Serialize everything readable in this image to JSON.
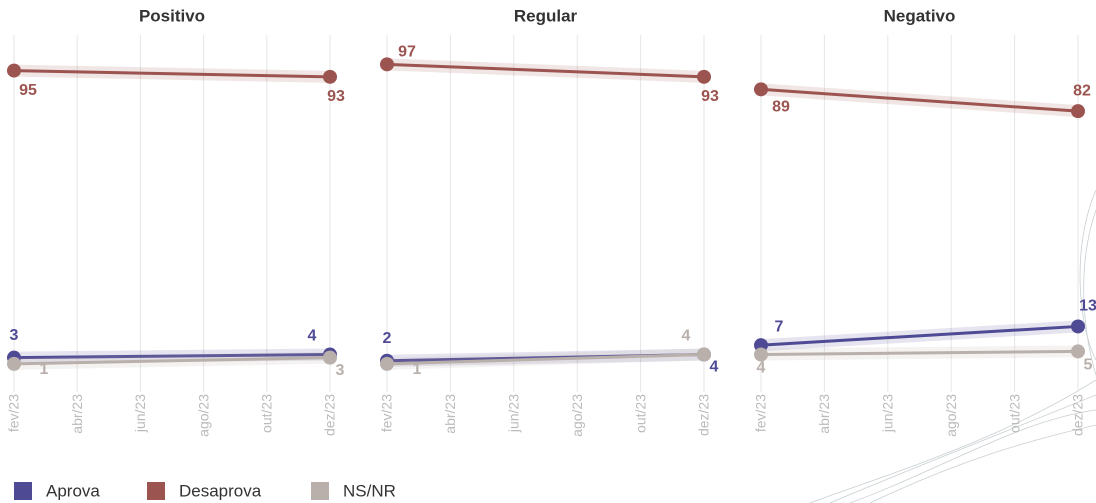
{
  "chart_data": [
    {
      "type": "line",
      "title": "Positivo",
      "xticks": [
        "fev/23",
        "abr/23",
        "jun/23",
        "ago/23",
        "out/23",
        "dez/23"
      ],
      "x": [
        "fev/23",
        "dez/23"
      ],
      "ylim": [
        0,
        100
      ],
      "grid": true,
      "series": [
        {
          "name": "Aprova",
          "color": "#4f4a94",
          "values": [
            3,
            4
          ]
        },
        {
          "name": "Desaprova",
          "color": "#9c5450",
          "values": [
            95,
            93
          ]
        },
        {
          "name": "NS/NR",
          "color": "#b9b0ab",
          "values": [
            1,
            3
          ]
        }
      ]
    },
    {
      "type": "line",
      "title": "Regular",
      "xticks": [
        "fev/23",
        "abr/23",
        "jun/23",
        "ago/23",
        "out/23",
        "dez/23"
      ],
      "x": [
        "fev/23",
        "dez/23"
      ],
      "ylim": [
        0,
        100
      ],
      "grid": true,
      "series": [
        {
          "name": "Aprova",
          "color": "#4f4a94",
          "values": [
            2,
            4
          ]
        },
        {
          "name": "Desaprova",
          "color": "#9c5450",
          "values": [
            97,
            93
          ]
        },
        {
          "name": "NS/NR",
          "color": "#b9b0ab",
          "values": [
            1,
            4
          ]
        }
      ]
    },
    {
      "type": "line",
      "title": "Negativo",
      "xticks": [
        "fev/23",
        "abr/23",
        "jun/23",
        "ago/23",
        "out/23",
        "dez/23"
      ],
      "x": [
        "fev/23",
        "dez/23"
      ],
      "ylim": [
        0,
        100
      ],
      "grid": true,
      "series": [
        {
          "name": "Aprova",
          "color": "#4f4a94",
          "values": [
            7,
            13
          ]
        },
        {
          "name": "Desaprova",
          "color": "#9c5450",
          "values": [
            89,
            82
          ]
        },
        {
          "name": "NS/NR",
          "color": "#b9b0ab",
          "values": [
            4,
            5
          ]
        }
      ]
    }
  ]
}
